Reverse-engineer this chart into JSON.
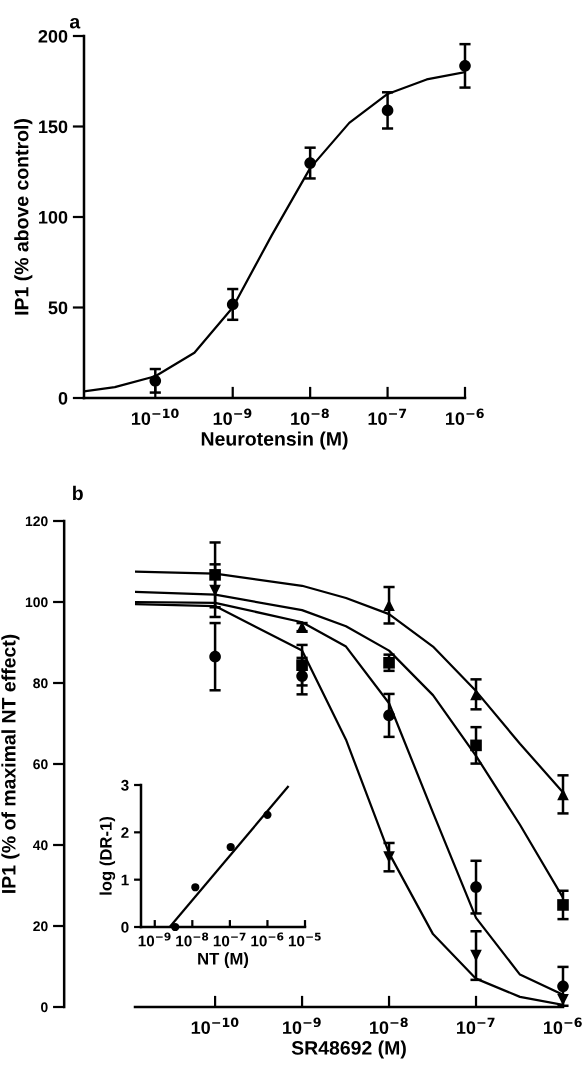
{
  "chart_data": [
    {
      "type": "scatter",
      "title": "a",
      "xlabel": "Neurotensin (M)",
      "ylabel": "IP1 (% above control)",
      "log": "x",
      "xlim": [
        1.2e-11,
        1e-06
      ],
      "ylim": [
        0,
        200
      ],
      "xticks": [
        {
          "value": 1e-10,
          "label": "10$^{−10}$"
        },
        {
          "value": 1e-09,
          "label": "10$^{−9}$"
        },
        {
          "value": 1e-08,
          "label": "10$^{−8}$"
        },
        {
          "value": 1e-07,
          "label": "10$^{−7}$"
        },
        {
          "value": 1e-06,
          "label": "10$^{−6}$"
        }
      ],
      "yticks": [
        0,
        50,
        100,
        150,
        200
      ],
      "grid": false,
      "legend": false,
      "series": [
        {
          "marker": "circle",
          "color": "#000000",
          "x": [
            1e-10,
            1e-09,
            1e-08,
            1e-07,
            1e-06
          ],
          "values": [
            9.5,
            51.7,
            129.8,
            158.9,
            183.5
          ],
          "errors": [
            6.5,
            8.5,
            8.5,
            10,
            12
          ]
        },
        {
          "type": "line",
          "marker": "none",
          "color": "#000000",
          "x": [
            1.2e-11,
            3e-11,
            1e-10,
            3.2e-10,
            1e-09,
            3.2e-09,
            1e-08,
            3.2e-08,
            1e-07,
            3.2e-07,
            1e-06
          ],
          "values": [
            3.6,
            6,
            12,
            25,
            50,
            90,
            127,
            152,
            168,
            176,
            180
          ]
        }
      ]
    },
    {
      "type": "scatter",
      "title": "b",
      "xlabel": "SR48692 (M)",
      "ylabel": "IP1 (% of maximal NT effect)",
      "log": "x",
      "xlim": [
        1.2e-11,
        1e-06
      ],
      "ylim": [
        0,
        120
      ],
      "xticks": [
        {
          "value": 1e-10,
          "label": "10$^{−10}$"
        },
        {
          "value": 1e-09,
          "label": "10$^{−9}$"
        },
        {
          "value": 1e-08,
          "label": "10$^{−8}$"
        },
        {
          "value": 1e-07,
          "label": "10$^{−7}$"
        },
        {
          "value": 1e-06,
          "label": "10$^{−6}$"
        }
      ],
      "yticks": [
        0,
        20,
        40,
        60,
        80,
        100,
        120
      ],
      "grid": false,
      "legend": false,
      "series": [
        {
          "type": "line",
          "marker": "none",
          "color": "#000000",
          "x": [
            1.2e-11,
            1e-10,
            1e-09,
            3.2e-09,
            1e-08,
            3.2e-08,
            1e-07,
            3.2e-07,
            1e-06
          ],
          "values": [
            107.5,
            107,
            104,
            101,
            97,
            89,
            78,
            65,
            53
          ]
        },
        {
          "type": "line",
          "marker": "none",
          "color": "#000000",
          "x": [
            1.2e-11,
            1e-10,
            1e-09,
            3.2e-09,
            1e-08,
            3.2e-08,
            1e-07,
            3.2e-07,
            1e-06
          ],
          "values": [
            102.5,
            101.8,
            98,
            94,
            88,
            77,
            62,
            45,
            27
          ]
        },
        {
          "type": "line",
          "marker": "none",
          "color": "#000000",
          "x": [
            1.2e-11,
            1e-10,
            1e-09,
            3.2e-09,
            1e-08,
            3.2e-08,
            1e-07,
            3.2e-07,
            1e-06
          ],
          "values": [
            100,
            99.8,
            95,
            89,
            75,
            48,
            22,
            8,
            3
          ]
        },
        {
          "type": "line",
          "marker": "none",
          "color": "#000000",
          "x": [
            1.2e-11,
            1e-10,
            1e-09,
            3.2e-09,
            1e-08,
            3.2e-08,
            1e-07,
            3.2e-07,
            1e-06
          ],
          "values": [
            99.5,
            99,
            88,
            66,
            38,
            18,
            7,
            2.5,
            0.5
          ]
        },
        {
          "marker": "circle",
          "color": "#000000",
          "x": [
            1e-10,
            1e-09,
            1e-08,
            1e-07,
            1e-06
          ],
          "values": [
            86.5,
            81.7,
            72,
            29.6,
            5.1
          ],
          "errors": [
            8.3,
            4.5,
            5.3,
            6.5,
            4.8
          ]
        },
        {
          "marker": "square",
          "color": "#000000",
          "x": [
            1e-10,
            1e-09,
            1e-08,
            1e-07,
            1e-06
          ],
          "values": [
            106.7,
            84.4,
            85,
            64.6,
            25.2
          ],
          "errors": [
            8,
            5,
            2,
            4.5,
            3.5
          ]
        },
        {
          "marker": "triangle",
          "color": "#000000",
          "x": [
            1e-09,
            1e-08,
            1e-07,
            1e-06
          ],
          "values": [
            93.8,
            99.2,
            77.2,
            52.5
          ],
          "errors": [
            1,
            4.5,
            3.7,
            4.7
          ]
        },
        {
          "marker": "triangle_down",
          "color": "#000000",
          "x": [
            1e-10,
            1e-08,
            1e-07,
            1e-06
          ],
          "values": [
            102.8,
            37,
            12.7,
            1.8
          ],
          "errors": [
            6.5,
            3.5,
            6,
            null
          ]
        }
      ]
    },
    {
      "type": "scatter",
      "xlabel": "NT (M)",
      "ylabel": "log (DR-1)",
      "log": "x",
      "xlim": [
        4.3e-10,
        1e-05
      ],
      "ylim": [
        0,
        3
      ],
      "xticks": [
        {
          "value": 1e-09,
          "label": "10$^{−9}$"
        },
        {
          "value": 1e-08,
          "label": "10$^{−8}$"
        },
        {
          "value": 1e-07,
          "label": "10$^{−7}$"
        },
        {
          "value": 1e-06,
          "label": "10$^{−6}$"
        },
        {
          "value": 1e-05,
          "label": "10$^{−5}$"
        }
      ],
      "yticks": [
        0,
        1,
        2,
        3
      ],
      "grid": false,
      "legend": false,
      "series": [
        {
          "marker": "circle",
          "color": "#000000",
          "x": [
            3.5e-09,
            1.2e-08,
            1.05e-07,
            1e-06
          ],
          "values": [
            0,
            0.84,
            1.69,
            2.37
          ]
        },
        {
          "type": "line",
          "marker": "none",
          "color": "#000000",
          "x": [
            2.5e-09,
            3.5e-06
          ],
          "values": [
            0,
            2.96
          ]
        }
      ]
    }
  ]
}
